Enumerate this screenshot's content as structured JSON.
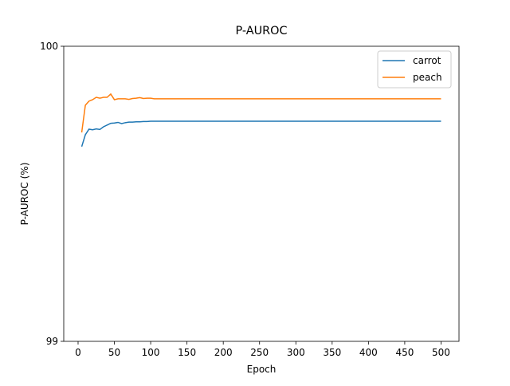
{
  "chart_data": {
    "type": "line",
    "title": "P-AUROC",
    "xlabel": "Epoch",
    "ylabel": "P-AUROC (%)",
    "x": [
      5,
      10,
      15,
      20,
      25,
      30,
      35,
      40,
      45,
      50,
      55,
      60,
      65,
      70,
      75,
      80,
      85,
      90,
      95,
      100,
      105,
      110,
      115,
      120,
      125,
      130,
      135,
      140,
      145,
      150,
      155,
      160,
      165,
      170,
      175,
      180,
      185,
      190,
      195,
      200,
      205,
      210,
      215,
      220,
      225,
      230,
      235,
      240,
      245,
      250,
      255,
      260,
      265,
      270,
      275,
      280,
      285,
      290,
      295,
      300,
      305,
      310,
      315,
      320,
      325,
      330,
      335,
      340,
      345,
      350,
      355,
      360,
      365,
      370,
      375,
      380,
      385,
      390,
      395,
      400,
      405,
      410,
      415,
      420,
      425,
      430,
      435,
      440,
      445,
      450,
      455,
      460,
      465,
      470,
      475,
      480,
      485,
      490,
      495,
      500
    ],
    "series": [
      {
        "name": "carrot",
        "color": "#1f77b4",
        "values": [
          99.66,
          99.7,
          99.719,
          99.717,
          99.72,
          99.718,
          99.727,
          99.733,
          99.739,
          99.74,
          99.742,
          99.738,
          99.741,
          99.743,
          99.743,
          99.744,
          99.744,
          99.745,
          99.745,
          99.746,
          99.746,
          99.746,
          99.746,
          99.746,
          99.746,
          99.746,
          99.746,
          99.746,
          99.746,
          99.746,
          99.746,
          99.746,
          99.746,
          99.746,
          99.746,
          99.746,
          99.746,
          99.746,
          99.746,
          99.746,
          99.746,
          99.746,
          99.746,
          99.746,
          99.746,
          99.746,
          99.746,
          99.746,
          99.746,
          99.746,
          99.746,
          99.746,
          99.746,
          99.746,
          99.746,
          99.746,
          99.746,
          99.746,
          99.746,
          99.746,
          99.746,
          99.746,
          99.746,
          99.746,
          99.746,
          99.746,
          99.746,
          99.746,
          99.746,
          99.746,
          99.746,
          99.746,
          99.746,
          99.746,
          99.746,
          99.746,
          99.746,
          99.746,
          99.746,
          99.746,
          99.746,
          99.746,
          99.746,
          99.746,
          99.746,
          99.746,
          99.746,
          99.746,
          99.746,
          99.746,
          99.746,
          99.746,
          99.746,
          99.746,
          99.746,
          99.746,
          99.746,
          99.746,
          99.746,
          99.746
        ]
      },
      {
        "name": "peach",
        "color": "#ff7f0e",
        "values": [
          99.708,
          99.8,
          99.814,
          99.819,
          99.827,
          99.824,
          99.827,
          99.827,
          99.838,
          99.819,
          99.822,
          99.822,
          99.822,
          99.82,
          99.823,
          99.824,
          99.826,
          99.823,
          99.824,
          99.824,
          99.822,
          99.822,
          99.822,
          99.822,
          99.822,
          99.822,
          99.822,
          99.822,
          99.822,
          99.822,
          99.822,
          99.822,
          99.822,
          99.822,
          99.822,
          99.822,
          99.822,
          99.822,
          99.822,
          99.822,
          99.822,
          99.822,
          99.822,
          99.822,
          99.822,
          99.822,
          99.822,
          99.822,
          99.822,
          99.822,
          99.822,
          99.822,
          99.822,
          99.822,
          99.822,
          99.822,
          99.822,
          99.822,
          99.822,
          99.822,
          99.822,
          99.822,
          99.822,
          99.822,
          99.822,
          99.822,
          99.822,
          99.822,
          99.822,
          99.822,
          99.822,
          99.822,
          99.822,
          99.822,
          99.822,
          99.822,
          99.822,
          99.822,
          99.822,
          99.822,
          99.822,
          99.822,
          99.822,
          99.822,
          99.822,
          99.822,
          99.822,
          99.822,
          99.822,
          99.822,
          99.822,
          99.822,
          99.822,
          99.822,
          99.822,
          99.822,
          99.822,
          99.822,
          99.822,
          99.822
        ]
      }
    ],
    "xlim": [
      -19.75,
      524.75
    ],
    "xticks": [
      0,
      50,
      100,
      150,
      200,
      250,
      300,
      350,
      400,
      450,
      500
    ],
    "ylim": [
      99,
      100
    ],
    "yticks": [
      99,
      100
    ],
    "grid": false,
    "legend": "upper right"
  }
}
